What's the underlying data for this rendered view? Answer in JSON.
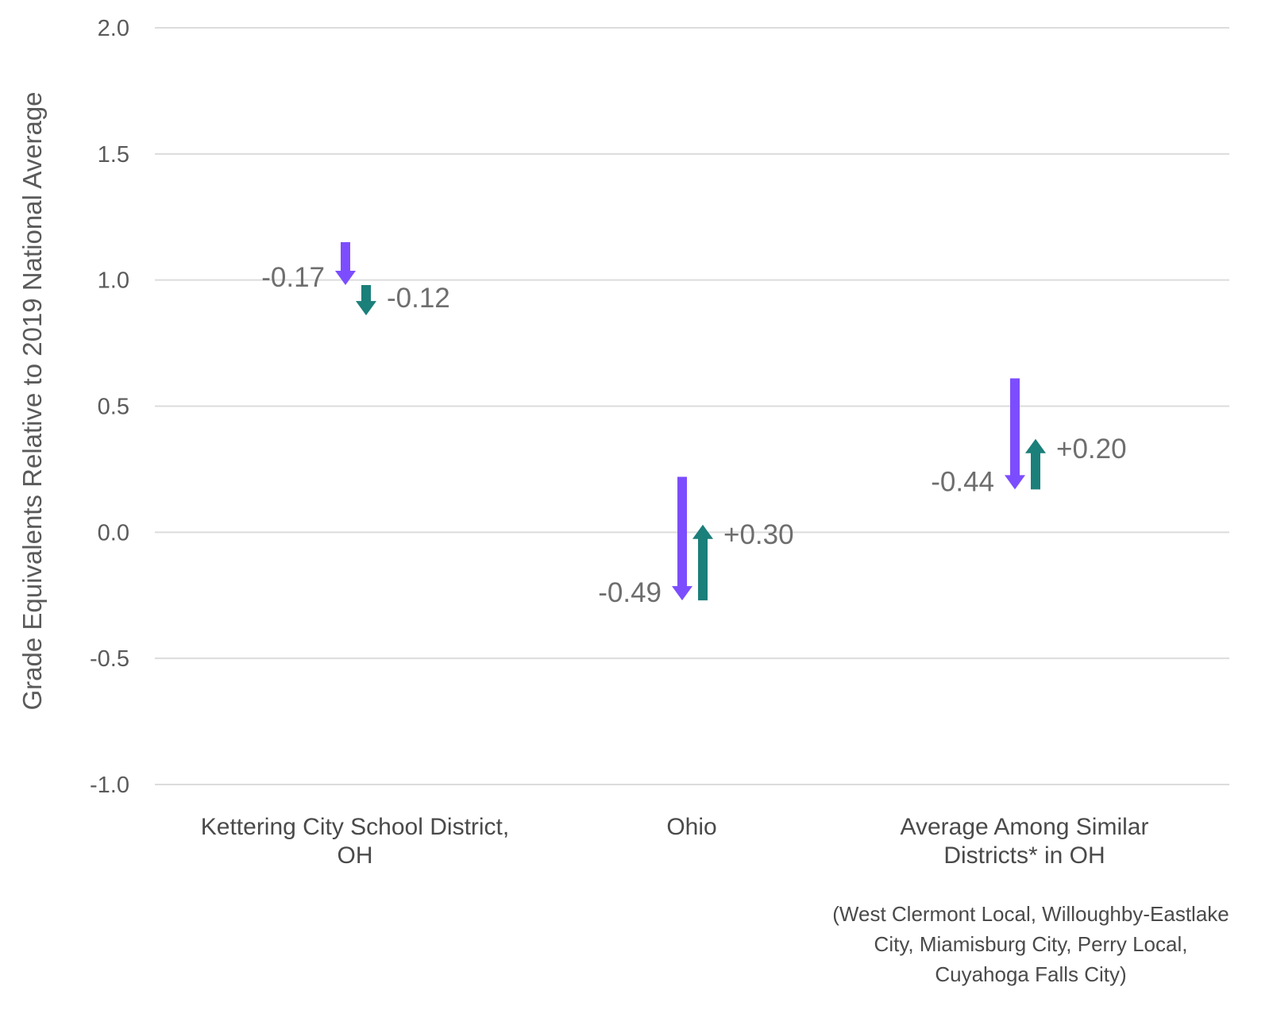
{
  "chart_data": {
    "type": "arrow",
    "ylabel": "Grade Equivalents Relative to 2019 National Average",
    "ylim": [
      -1.0,
      2.0
    ],
    "yticks": [
      2.0,
      1.5,
      1.0,
      0.5,
      0.0,
      -0.5,
      -1.0
    ],
    "ytick_labels": [
      "2.0",
      "1.5",
      "1.0",
      "0.5",
      "0.0",
      "-0.5",
      "-1.0"
    ],
    "grid": true,
    "categories": [
      {
        "lines": [
          "Kettering City School District,",
          "OH"
        ]
      },
      {
        "lines": [
          "Ohio"
        ]
      },
      {
        "lines": [
          "Average Among Similar",
          "Districts* in OH"
        ]
      }
    ],
    "footnote": [
      "(West Clermont Local, Willoughby-Eastlake",
      "City, Miamisburg City, Perry Local,",
      "Cuyahoga Falls City)"
    ],
    "series": [
      {
        "color": "#7c4dff",
        "arrows": [
          {
            "start": 1.15,
            "end": 0.98,
            "label": "-0.17"
          },
          {
            "start": 0.22,
            "end": -0.27,
            "label": "-0.49"
          },
          {
            "start": 0.61,
            "end": 0.17,
            "label": "-0.44"
          }
        ]
      },
      {
        "color": "#1b7f7a",
        "arrows": [
          {
            "start": 0.98,
            "end": 0.86,
            "label": "-0.12"
          },
          {
            "start": -0.27,
            "end": 0.03,
            "label": "+0.30"
          },
          {
            "start": 0.17,
            "end": 0.37,
            "label": "+0.20"
          }
        ]
      }
    ]
  }
}
